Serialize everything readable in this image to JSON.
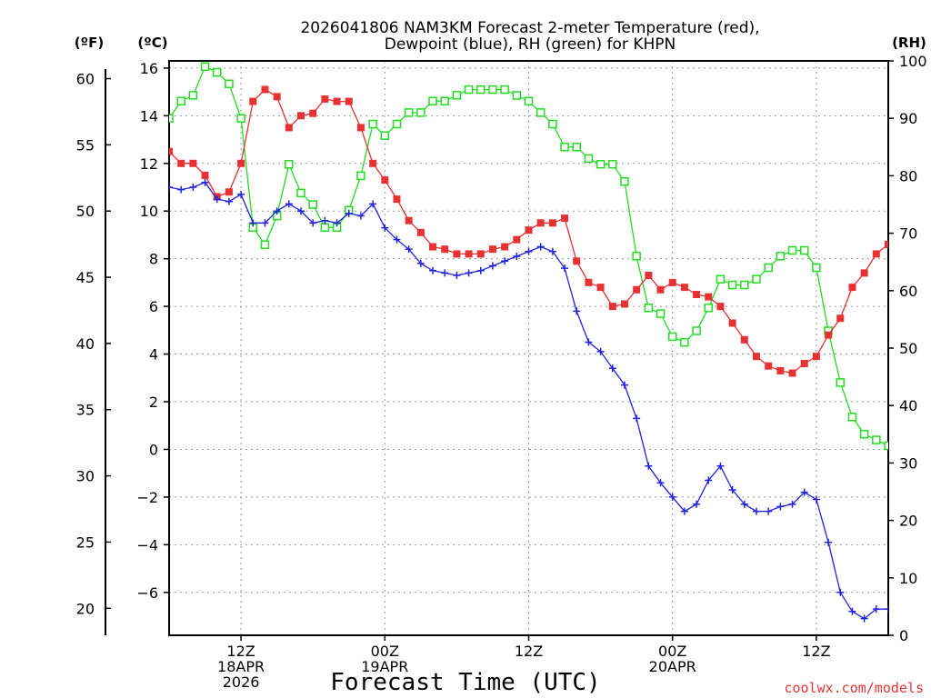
{
  "chart_data": {
    "type": "line",
    "title_line1": "2026041806 NAM3KM Forecast 2-meter Temperature (red),",
    "title_line2": "Dewpoint (blue), RH (green) for KHPN",
    "xlabel": "Forecast Time (UTC)",
    "credit": "coolwx.com/models",
    "unit_labels": {
      "fahrenheit": "(ºF)",
      "celsius": "(ºC)",
      "rh": "(RH)"
    },
    "forecast_hours": [
      0,
      1,
      2,
      3,
      4,
      5,
      6,
      7,
      8,
      9,
      10,
      11,
      12,
      13,
      14,
      15,
      16,
      17,
      18,
      19,
      20,
      21,
      22,
      23,
      24,
      25,
      26,
      27,
      28,
      29,
      30,
      31,
      32,
      33,
      34,
      35,
      36,
      37,
      38,
      39,
      40,
      41,
      42,
      43,
      44,
      45,
      46,
      47,
      48,
      49,
      50,
      51,
      52,
      53,
      54,
      55,
      56,
      57,
      58,
      59,
      60
    ],
    "xlim": [
      0,
      60
    ],
    "ylim_c": [
      -7.8,
      16.3
    ],
    "ylim_rh": [
      0,
      100
    ],
    "yticks_c": [
      -6,
      -4,
      -2,
      0,
      2,
      4,
      6,
      8,
      10,
      12,
      14,
      16
    ],
    "yticks_f": [
      20,
      25,
      30,
      35,
      40,
      45,
      50,
      55,
      60
    ],
    "yticks_rh": [
      0,
      10,
      20,
      30,
      40,
      50,
      60,
      70,
      80,
      90,
      100
    ],
    "x_ticks": [
      {
        "hour": 6,
        "line1": "12Z",
        "line2": "18APR",
        "line3": "2026"
      },
      {
        "hour": 18,
        "line1": "00Z",
        "line2": "19APR",
        "line3": ""
      },
      {
        "hour": 30,
        "line1": "12Z",
        "line2": "",
        "line3": ""
      },
      {
        "hour": 42,
        "line1": "00Z",
        "line2": "20APR",
        "line3": ""
      },
      {
        "hour": 54,
        "line1": "12Z",
        "line2": "",
        "line3": ""
      }
    ],
    "series": [
      {
        "name": "2-meter Temperature (°C)",
        "axis": "celsius",
        "color": "#e63232",
        "marker": "filled-square",
        "values": [
          12.5,
          12.0,
          12.0,
          11.5,
          10.6,
          10.8,
          12.0,
          14.6,
          15.1,
          14.8,
          13.5,
          14.0,
          14.1,
          14.7,
          14.6,
          14.6,
          13.5,
          12.0,
          11.3,
          10.5,
          9.6,
          9.1,
          8.5,
          8.4,
          8.2,
          8.2,
          8.2,
          8.4,
          8.5,
          8.8,
          9.2,
          9.5,
          9.5,
          9.7,
          7.9,
          7.0,
          6.8,
          6.0,
          6.1,
          6.7,
          7.3,
          6.7,
          7.0,
          6.8,
          6.5,
          6.4,
          6.0,
          5.3,
          4.6,
          3.9,
          3.5,
          3.3,
          3.2,
          3.6,
          3.9,
          4.8,
          5.5,
          6.8,
          7.4,
          8.2,
          8.6
        ]
      },
      {
        "name": "Dewpoint (°C)",
        "axis": "celsius",
        "color": "#2222e0",
        "marker": "plus",
        "values": [
          11.0,
          10.9,
          11.0,
          11.2,
          10.5,
          10.4,
          10.7,
          9.5,
          9.5,
          10.0,
          10.3,
          10.0,
          9.5,
          9.6,
          9.5,
          9.9,
          9.8,
          10.3,
          9.3,
          8.8,
          8.4,
          7.8,
          7.5,
          7.4,
          7.3,
          7.4,
          7.5,
          7.7,
          7.9,
          8.1,
          8.3,
          8.5,
          8.3,
          7.6,
          5.8,
          4.5,
          4.1,
          3.4,
          2.7,
          1.3,
          -0.7,
          -1.4,
          -2.0,
          -2.6,
          -2.3,
          -1.3,
          -0.7,
          -1.7,
          -2.3,
          -2.6,
          -2.6,
          -2.4,
          -2.3,
          -1.8,
          -2.1,
          -3.9,
          -6.0,
          -6.8,
          -7.1,
          -6.7,
          -6.7
        ]
      },
      {
        "name": "Relative Humidity (%)",
        "axis": "rh",
        "color": "#22dd22",
        "marker": "open-square",
        "values": [
          90,
          93,
          94,
          99,
          98,
          96,
          90,
          71,
          68,
          73,
          82,
          77,
          75,
          71,
          71,
          74,
          80,
          89,
          87,
          89,
          91,
          91,
          93,
          93,
          94,
          95,
          95,
          95,
          95,
          94,
          93,
          91,
          89,
          85,
          85,
          83,
          82,
          82,
          79,
          66,
          57,
          56,
          52,
          51,
          53,
          57,
          62,
          61,
          61,
          62,
          64,
          66,
          67,
          67,
          64,
          53,
          44,
          38,
          35,
          34,
          33
        ]
      }
    ]
  }
}
